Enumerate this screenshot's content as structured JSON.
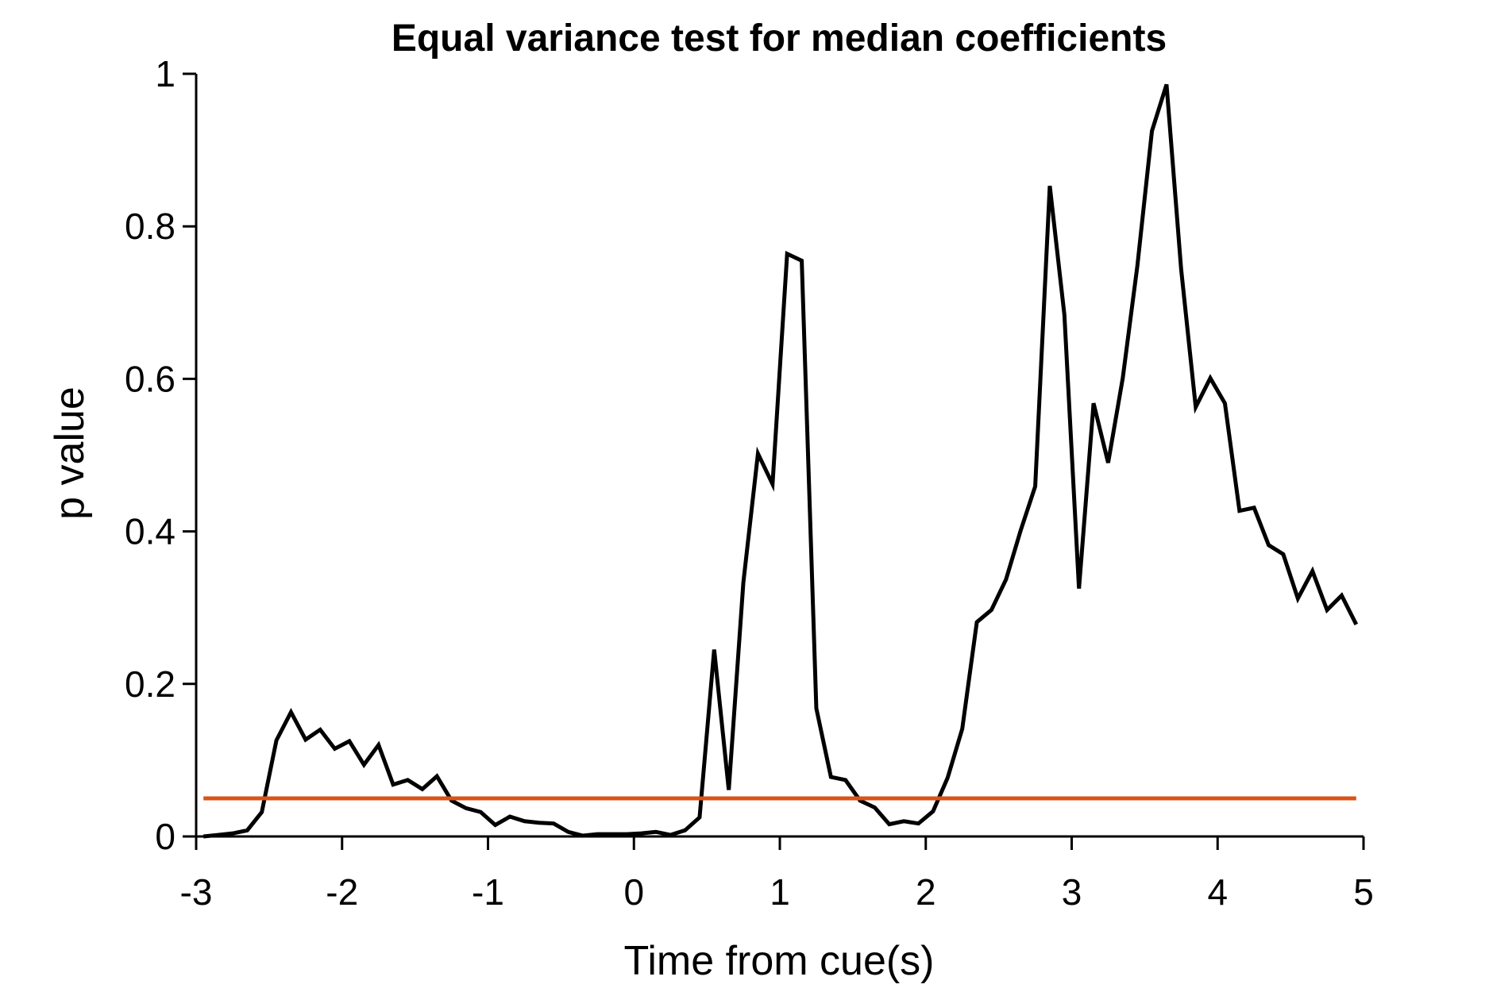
{
  "chart_data": {
    "type": "line",
    "title": "Equal variance test for median coefficients",
    "xlabel": "Time from cue(s)",
    "ylabel": "p value",
    "x": [
      -2.95,
      -2.85,
      -2.75,
      -2.65,
      -2.55,
      -2.45,
      -2.35,
      -2.25,
      -2.15,
      -2.05,
      -1.95,
      -1.85,
      -1.75,
      -1.65,
      -1.55,
      -1.45,
      -1.35,
      -1.25,
      -1.15,
      -1.05,
      -0.95,
      -0.85,
      -0.75,
      -0.65,
      -0.55,
      -0.45,
      -0.35,
      -0.25,
      -0.15,
      -0.05,
      0.05,
      0.15,
      0.25,
      0.35,
      0.45,
      0.55,
      0.65,
      0.75,
      0.85,
      0.95,
      1.05,
      1.15,
      1.25,
      1.35,
      1.45,
      1.55,
      1.65,
      1.75,
      1.85,
      1.95,
      2.05,
      2.15,
      2.25,
      2.35,
      2.45,
      2.55,
      2.65,
      2.75,
      2.85,
      2.95,
      3.05,
      3.15,
      3.25,
      3.35,
      3.45,
      3.55,
      3.65,
      3.75,
      3.85,
      3.95,
      4.05,
      4.15,
      4.25,
      4.35,
      4.45,
      4.55,
      4.65,
      4.75,
      4.85,
      4.95
    ],
    "series": [
      {
        "color": "#000000",
        "values": [
          0,
          0.002,
          0.004,
          0.008,
          0.032,
          0.126,
          0.163,
          0.127,
          0.14,
          0.115,
          0.125,
          0.094,
          0.12,
          0.068,
          0.074,
          0.062,
          0.079,
          0.047,
          0.037,
          0.032,
          0.015,
          0.026,
          0.02,
          0.018,
          0.017,
          0.006,
          0.001,
          0.003,
          0.003,
          0.003,
          0.004,
          0.006,
          0.002,
          0.008,
          0.025,
          0.245,
          0.061,
          0.333,
          0.502,
          0.462,
          0.764,
          0.755,
          0.168,
          0.078,
          0.074,
          0.047,
          0.038,
          0.016,
          0.02,
          0.017,
          0.033,
          0.077,
          0.141,
          0.281,
          0.297,
          0.337,
          0.401,
          0.459,
          0.853,
          0.684,
          0.325,
          0.568,
          0.49,
          0.601,
          0.748,
          0.925,
          0.986,
          0.744,
          0.563,
          0.601,
          0.568,
          0.427,
          0.431,
          0.382,
          0.37,
          0.312,
          0.348,
          0.297,
          0.316,
          0.278
        ]
      },
      {
        "color": "#d95319",
        "x": [
          -2.95,
          4.95
        ],
        "values": [
          0.05,
          0.05
        ]
      }
    ],
    "xlim": [
      -3,
      5
    ],
    "xticks": [
      -3,
      -2,
      -1,
      0,
      1,
      2,
      3,
      4,
      5
    ],
    "ylim": [
      0,
      1
    ],
    "yticks": [
      0,
      0.2,
      0.4,
      0.6,
      0.8,
      1
    ]
  }
}
